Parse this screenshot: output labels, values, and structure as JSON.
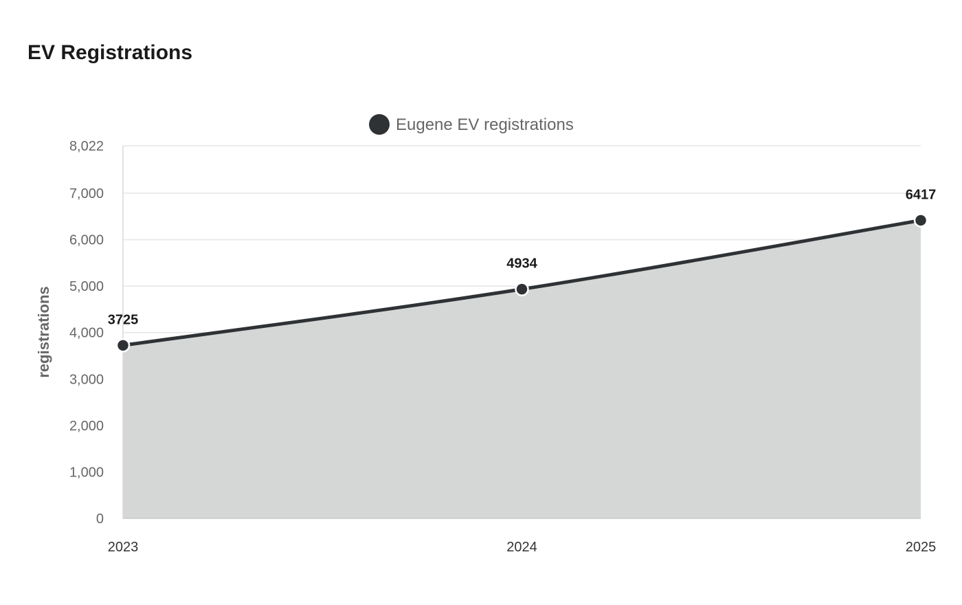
{
  "page": {
    "title": "EV Registrations"
  },
  "chart_data": {
    "type": "area",
    "title": "EV Registrations",
    "x": [
      "2023",
      "2024",
      "2025"
    ],
    "series": [
      {
        "name": "Eugene EV registrations",
        "values": [
          3725,
          4934,
          6417
        ],
        "color": "#2f3235",
        "fill_color": "#d5d7d7"
      }
    ],
    "ylabel": "registrations",
    "xlabel": "",
    "ylim": [
      0,
      8022
    ],
    "yticks": [
      0,
      1000,
      2000,
      3000,
      4000,
      5000,
      6000,
      7000,
      8022
    ],
    "ytick_labels": [
      "0",
      "1,000",
      "2,000",
      "3,000",
      "4,000",
      "5,000",
      "6,000",
      "7,000",
      "8,022"
    ],
    "data_labels": [
      "3725",
      "4934",
      "6417"
    ],
    "grid": true,
    "legend_position": "top-center"
  }
}
